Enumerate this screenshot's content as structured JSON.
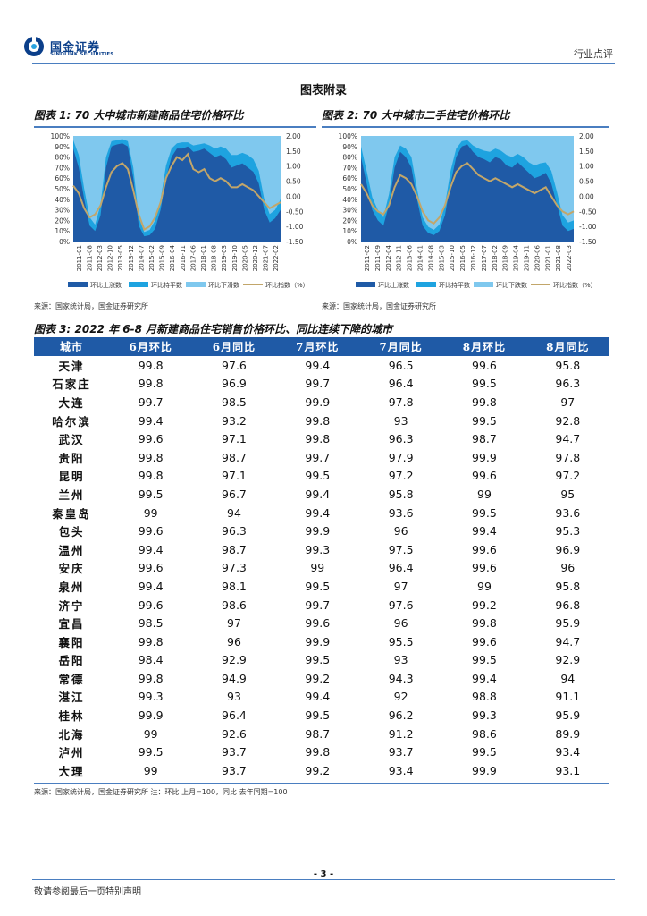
{
  "header": {
    "logo_cn": "国金证券",
    "logo_en": "SINOLINK SECURITIES",
    "doc_type": "行业点评"
  },
  "section_title": "图表附录",
  "figures": {
    "fig1_title": "图表 1: 70 大中城市新建商品住宅价格环比",
    "fig2_title": "图表 2: 70 大中城市二手住宅价格环比",
    "fig3_title": "图表 3: 2022 年 6-8 月新建商品住宅销售价格环比、同比连续下降的城市",
    "fig1_source": "来源：国家统计局，国金证券研究所",
    "fig2_source": "来源：国家统计局，国金证券研究所",
    "fig3_source": "来源：国家统计局，国金证券研究所 注：环比 上月=100，同比 去年同期=100"
  },
  "chart_data": [
    {
      "type": "area",
      "y_left_ticks": [
        "100%",
        "90%",
        "80%",
        "70%",
        "60%",
        "50%",
        "40%",
        "30%",
        "20%",
        "10%",
        "0%"
      ],
      "y_right_ticks": [
        "2.00",
        "1.50",
        "1.00",
        "0.50",
        "0.00",
        "-0.50",
        "-1.00",
        "-1.50"
      ],
      "ylim_left": [
        0,
        100
      ],
      "ylim_right": [
        -1.5,
        2.0
      ],
      "x_ticks": [
        "2011-01",
        "2011-08",
        "2012-03",
        "2012-10",
        "2013-05",
        "2013-12",
        "2014-07",
        "2015-02",
        "2015-09",
        "2016-04",
        "2016-11",
        "2017-06",
        "2018-01",
        "2018-08",
        "2019-03",
        "2019-10",
        "2020-05",
        "2020-12",
        "2021-07",
        "2022-02"
      ],
      "legend": [
        "环比上涨数",
        "环比持平数",
        "环比下滑数",
        "环比指数（%）"
      ],
      "colors": {
        "up": "#1f5aa6",
        "flat": "#1ea3e0",
        "down": "#7fc8ee",
        "index": "#c2a66a"
      },
      "series": [
        {
          "name": "环比上涨数",
          "values": [
            88,
            70,
            40,
            15,
            10,
            25,
            70,
            90,
            92,
            93,
            90,
            60,
            15,
            5,
            6,
            12,
            30,
            60,
            80,
            88,
            88,
            90,
            85,
            86,
            88,
            84,
            80,
            82,
            78,
            70,
            72,
            74,
            70,
            66,
            55,
            30,
            18,
            22,
            30
          ]
        },
        {
          "name": "环比持平数",
          "values": [
            8,
            12,
            10,
            8,
            6,
            10,
            10,
            5,
            4,
            4,
            5,
            10,
            8,
            4,
            5,
            8,
            10,
            12,
            8,
            5,
            6,
            4,
            6,
            6,
            5,
            7,
            8,
            8,
            10,
            12,
            10,
            10,
            12,
            12,
            12,
            10,
            8,
            8,
            10
          ]
        },
        {
          "name": "环比指数（%）",
          "values": [
            0.35,
            0.1,
            -0.4,
            -0.7,
            -0.6,
            -0.3,
            0.3,
            0.8,
            1.0,
            1.1,
            0.9,
            0.2,
            -0.6,
            -1.1,
            -1.0,
            -0.7,
            -0.2,
            0.6,
            1.0,
            1.3,
            1.2,
            1.4,
            0.9,
            0.8,
            0.9,
            0.6,
            0.5,
            0.6,
            0.5,
            0.3,
            0.3,
            0.4,
            0.3,
            0.2,
            0.0,
            -0.2,
            -0.4,
            -0.3,
            -0.2
          ]
        }
      ]
    },
    {
      "type": "area",
      "y_left_ticks": [
        "100%",
        "90%",
        "80%",
        "70%",
        "60%",
        "50%",
        "40%",
        "30%",
        "20%",
        "10%",
        "0%"
      ],
      "y_right_ticks": [
        "2.00",
        "1.50",
        "1.00",
        "0.50",
        "0.00",
        "-0.50",
        "-1.00",
        "-1.50"
      ],
      "ylim_left": [
        0,
        100
      ],
      "ylim_right": [
        -1.5,
        2.0
      ],
      "x_ticks": [
        "2011-02",
        "2011-09",
        "2012-04",
        "2012-11",
        "2013-06",
        "2014-01",
        "2014-08",
        "2015-03",
        "2015-10",
        "2016-05",
        "2016-12",
        "2017-07",
        "2018-02",
        "2018-09",
        "2019-04",
        "2019-11",
        "2020-06",
        "2021-01",
        "2021-08",
        "2022-03"
      ],
      "legend": [
        "环比上涨数",
        "环比持平数",
        "环比下跌数",
        "环比指数（%）"
      ],
      "colors": {
        "up": "#1f5aa6",
        "flat": "#1ea3e0",
        "down": "#7fc8ee",
        "index": "#c2a66a"
      },
      "series": [
        {
          "name": "环比上涨数",
          "values": [
            80,
            55,
            30,
            20,
            15,
            35,
            70,
            85,
            80,
            70,
            40,
            15,
            8,
            6,
            10,
            25,
            55,
            80,
            90,
            92,
            85,
            80,
            78,
            75,
            80,
            78,
            72,
            70,
            75,
            70,
            65,
            60,
            62,
            65,
            55,
            35,
            15,
            10,
            12
          ]
        },
        {
          "name": "环比持平数",
          "values": [
            10,
            12,
            12,
            10,
            8,
            10,
            10,
            6,
            8,
            10,
            10,
            8,
            6,
            5,
            6,
            10,
            12,
            8,
            5,
            4,
            6,
            8,
            8,
            10,
            8,
            8,
            10,
            10,
            8,
            10,
            10,
            12,
            12,
            10,
            12,
            12,
            10,
            8,
            8
          ]
        },
        {
          "name": "环比指数（%）",
          "values": [
            0.4,
            0.1,
            -0.3,
            -0.5,
            -0.6,
            -0.3,
            0.3,
            0.7,
            0.6,
            0.4,
            0.0,
            -0.5,
            -0.8,
            -0.9,
            -0.7,
            -0.3,
            0.3,
            0.8,
            1.0,
            1.1,
            0.9,
            0.7,
            0.6,
            0.5,
            0.6,
            0.5,
            0.4,
            0.3,
            0.4,
            0.3,
            0.2,
            0.1,
            0.2,
            0.3,
            0.0,
            -0.3,
            -0.5,
            -0.6,
            -0.5
          ]
        }
      ]
    }
  ],
  "table": {
    "headers": [
      "城市",
      "6月环比",
      "6月同比",
      "7月环比",
      "7月同比",
      "8月环比",
      "8月同比"
    ],
    "rows": [
      [
        "天津",
        "99.8",
        "97.6",
        "99.4",
        "96.5",
        "99.6",
        "95.8"
      ],
      [
        "石家庄",
        "99.8",
        "96.9",
        "99.7",
        "96.4",
        "99.5",
        "96.3"
      ],
      [
        "大连",
        "99.7",
        "98.5",
        "99.9",
        "97.8",
        "99.8",
        "97"
      ],
      [
        "哈尔滨",
        "99.4",
        "93.2",
        "99.8",
        "93",
        "99.5",
        "92.8"
      ],
      [
        "武汉",
        "99.6",
        "97.1",
        "99.8",
        "96.3",
        "98.7",
        "94.7"
      ],
      [
        "贵阳",
        "99.8",
        "98.7",
        "99.7",
        "97.9",
        "99.9",
        "97.8"
      ],
      [
        "昆明",
        "99.8",
        "97.1",
        "99.5",
        "97.2",
        "99.6",
        "97.2"
      ],
      [
        "兰州",
        "99.5",
        "96.7",
        "99.4",
        "95.8",
        "99",
        "95"
      ],
      [
        "秦皇岛",
        "99",
        "94",
        "99.4",
        "93.6",
        "99.5",
        "93.6"
      ],
      [
        "包头",
        "99.6",
        "96.3",
        "99.9",
        "96",
        "99.4",
        "95.3"
      ],
      [
        "温州",
        "99.4",
        "98.7",
        "99.3",
        "97.5",
        "99.6",
        "96.9"
      ],
      [
        "安庆",
        "99.6",
        "97.3",
        "99",
        "96.4",
        "99.6",
        "96"
      ],
      [
        "泉州",
        "99.4",
        "98.1",
        "99.5",
        "97",
        "99",
        "95.8"
      ],
      [
        "济宁",
        "99.6",
        "98.6",
        "99.7",
        "97.6",
        "99.2",
        "96.8"
      ],
      [
        "宜昌",
        "98.5",
        "97",
        "99.6",
        "96",
        "99.8",
        "95.9"
      ],
      [
        "襄阳",
        "99.8",
        "96",
        "99.9",
        "95.5",
        "99.6",
        "94.7"
      ],
      [
        "岳阳",
        "98.4",
        "92.9",
        "99.5",
        "93",
        "99.5",
        "92.9"
      ],
      [
        "常德",
        "99.8",
        "94.9",
        "99.2",
        "94.3",
        "99.4",
        "94"
      ],
      [
        "湛江",
        "99.3",
        "93",
        "99.4",
        "92",
        "98.8",
        "91.1"
      ],
      [
        "桂林",
        "99.9",
        "96.4",
        "99.5",
        "96.2",
        "99.3",
        "95.9"
      ],
      [
        "北海",
        "99",
        "92.6",
        "98.7",
        "91.2",
        "98.6",
        "89.9"
      ],
      [
        "泸州",
        "99.5",
        "93.7",
        "99.8",
        "93.7",
        "99.5",
        "93.4"
      ],
      [
        "大理",
        "99",
        "93.7",
        "99.2",
        "93.4",
        "99.9",
        "93.1"
      ]
    ]
  },
  "footer": {
    "page_number": "- 3 -",
    "disclaimer": "敬请参阅最后一页特别声明"
  }
}
